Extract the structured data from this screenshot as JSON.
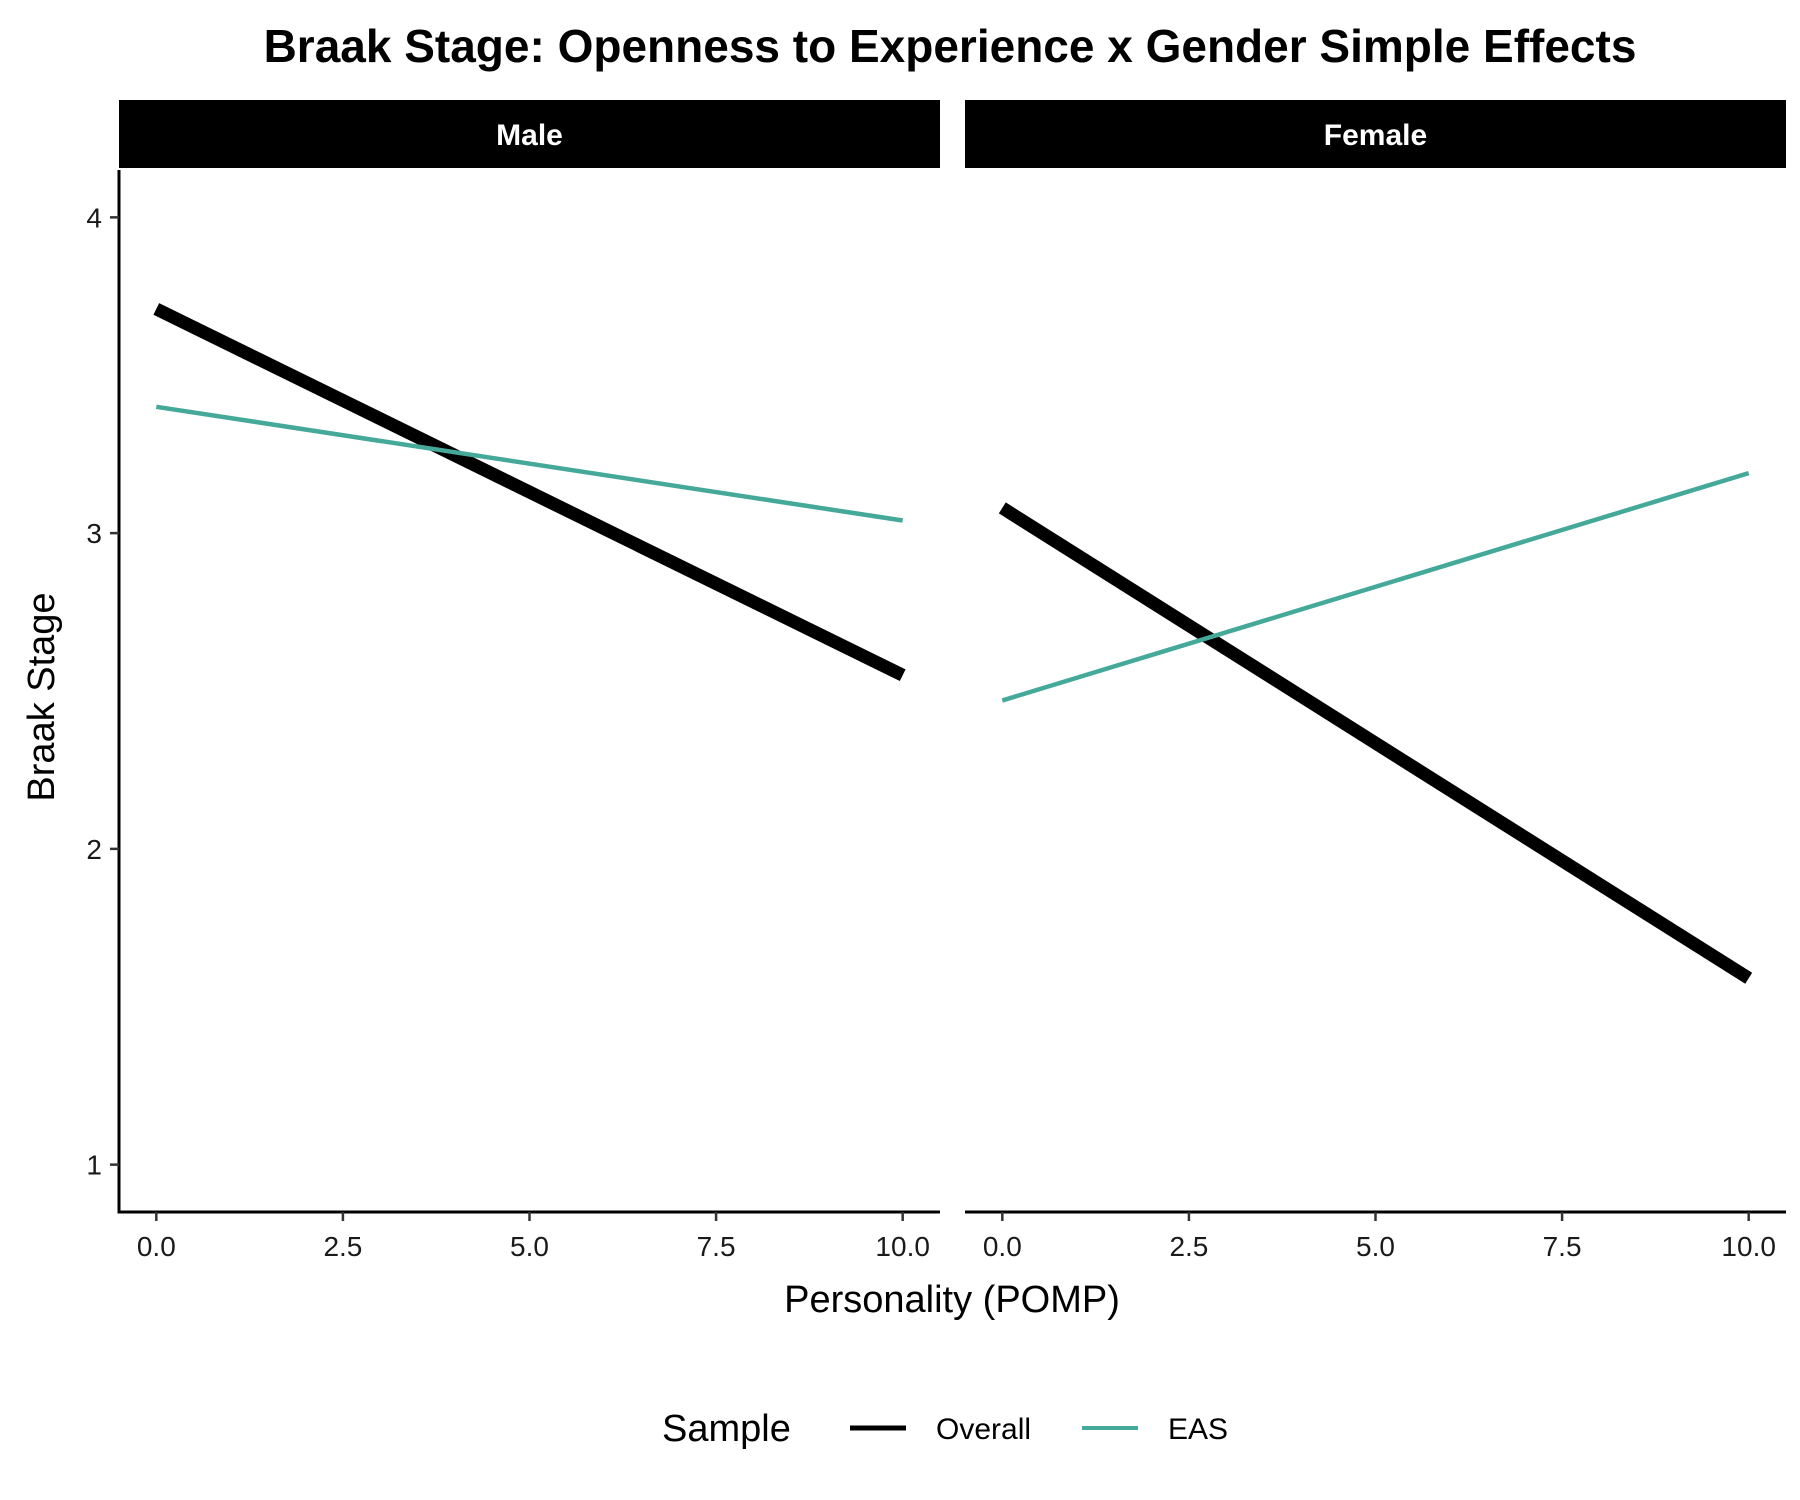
{
  "chart_data": {
    "type": "line",
    "title": "Braak Stage: Openness to Experience x Gender Simple Effects",
    "xlabel": "Personality (POMP)",
    "ylabel": "Braak Stage",
    "xlim": [
      -0.5,
      10.5
    ],
    "ylim": [
      0.85,
      4.15
    ],
    "x_ticks": [
      "0.0",
      "2.5",
      "5.0",
      "7.5",
      "10.0"
    ],
    "y_ticks": [
      "1",
      "2",
      "3",
      "4"
    ],
    "grid": false,
    "legend": {
      "title": "Sample",
      "position": "bottom",
      "entries": [
        {
          "name": "Overall",
          "color": "#000000"
        },
        {
          "name": "EAS",
          "color": "#45a99a"
        }
      ]
    },
    "panels": [
      {
        "label": "Male",
        "series": [
          {
            "name": "Overall",
            "color": "#000000",
            "x": [
              0,
              10
            ],
            "y": [
              3.71,
              2.55
            ]
          },
          {
            "name": "EAS",
            "color": "#45a99a",
            "x": [
              0,
              10
            ],
            "y": [
              3.4,
              3.04
            ]
          }
        ]
      },
      {
        "label": "Female",
        "series": [
          {
            "name": "Overall",
            "color": "#000000",
            "x": [
              0,
              10
            ],
            "y": [
              3.08,
              1.59
            ]
          },
          {
            "name": "EAS",
            "color": "#45a99a",
            "x": [
              0,
              10
            ],
            "y": [
              2.47,
              3.19
            ]
          }
        ]
      }
    ]
  }
}
